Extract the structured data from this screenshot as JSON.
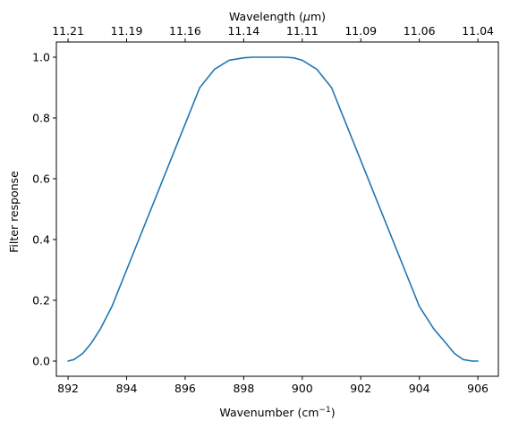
{
  "chart_data": {
    "type": "line",
    "x_axis": {
      "label_text": "Wavenumber (cm",
      "label_superscript": "−1",
      "label_close": ")",
      "lim": [
        891.6,
        906.7
      ],
      "ticks": [
        892,
        894,
        896,
        898,
        900,
        902,
        904,
        906
      ],
      "tick_labels": [
        "892",
        "894",
        "896",
        "898",
        "900",
        "902",
        "904",
        "906"
      ]
    },
    "top_axis": {
      "label_text": "Wavelength (",
      "label_mu": "μ",
      "label_rest": "m)",
      "tick_positions_wavenumber": [
        892,
        894,
        896,
        898,
        900,
        902,
        904,
        906
      ],
      "tick_labels": [
        "11.21",
        "11.19",
        "11.16",
        "11.14",
        "11.11",
        "11.09",
        "11.06",
        "11.04"
      ]
    },
    "y_axis": {
      "label": "Filter response",
      "lim": [
        -0.05,
        1.05
      ],
      "ticks": [
        0.0,
        0.2,
        0.4,
        0.6,
        0.8,
        1.0
      ],
      "tick_labels": [
        "0.0",
        "0.2",
        "0.4",
        "0.6",
        "0.8",
        "1.0"
      ]
    },
    "series": [
      {
        "color": "#1f77b4",
        "x": [
          892.0,
          892.2,
          892.5,
          892.8,
          893.1,
          893.5,
          894.0,
          894.5,
          895.0,
          895.5,
          896.0,
          896.5,
          897.0,
          897.5,
          898.0,
          898.3,
          898.6,
          899.0,
          899.4,
          899.7,
          900.0,
          900.5,
          901.0,
          901.5,
          902.0,
          902.5,
          903.0,
          903.5,
          904.0,
          904.5,
          904.9,
          905.2,
          905.5,
          905.8,
          906.0
        ],
        "y": [
          0.0,
          0.005,
          0.025,
          0.06,
          0.105,
          0.18,
          0.3,
          0.42,
          0.54,
          0.66,
          0.78,
          0.9,
          0.96,
          0.99,
          0.998,
          1.0,
          1.0,
          1.0,
          1.0,
          0.998,
          0.99,
          0.96,
          0.9,
          0.78,
          0.66,
          0.54,
          0.42,
          0.3,
          0.18,
          0.105,
          0.06,
          0.025,
          0.005,
          0.0,
          0.0
        ]
      }
    ],
    "grid": false,
    "legend": "none"
  }
}
